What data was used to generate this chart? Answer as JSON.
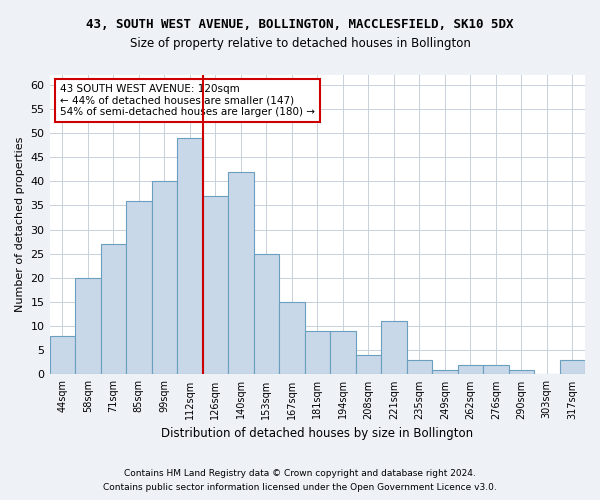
{
  "title": "43, SOUTH WEST AVENUE, BOLLINGTON, MACCLESFIELD, SK10 5DX",
  "subtitle": "Size of property relative to detached houses in Bollington",
  "xlabel": "Distribution of detached houses by size in Bollington",
  "ylabel": "Number of detached properties",
  "categories": [
    "44sqm",
    "58sqm",
    "71sqm",
    "85sqm",
    "99sqm",
    "112sqm",
    "126sqm",
    "140sqm",
    "153sqm",
    "167sqm",
    "181sqm",
    "194sqm",
    "208sqm",
    "221sqm",
    "235sqm",
    "249sqm",
    "262sqm",
    "276sqm",
    "290sqm",
    "303sqm",
    "317sqm"
  ],
  "values": [
    8,
    20,
    27,
    36,
    40,
    49,
    37,
    42,
    25,
    15,
    9,
    9,
    4,
    11,
    3,
    1,
    2,
    2,
    1,
    0,
    3
  ],
  "bar_color": "#c8d8e8",
  "bar_edge_color": "#6a9fc0",
  "highlight_line_color": "#cc0000",
  "annotation_text_line1": "43 SOUTH WEST AVENUE: 120sqm",
  "annotation_text_line2": "← 44% of detached houses are smaller (147)",
  "annotation_text_line3": "54% of semi-detached houses are larger (180) →",
  "annotation_box_color": "#ffffff",
  "annotation_box_edge_color": "#cc0000",
  "ylim": [
    0,
    62
  ],
  "yticks": [
    0,
    5,
    10,
    15,
    20,
    25,
    30,
    35,
    40,
    45,
    50,
    55,
    60
  ],
  "footnote1": "Contains HM Land Registry data © Crown copyright and database right 2024.",
  "footnote2": "Contains public sector information licensed under the Open Government Licence v3.0.",
  "bg_color": "#eef2f7",
  "plot_bg_color": "#ffffff",
  "grid_color": "#c8d0dc"
}
